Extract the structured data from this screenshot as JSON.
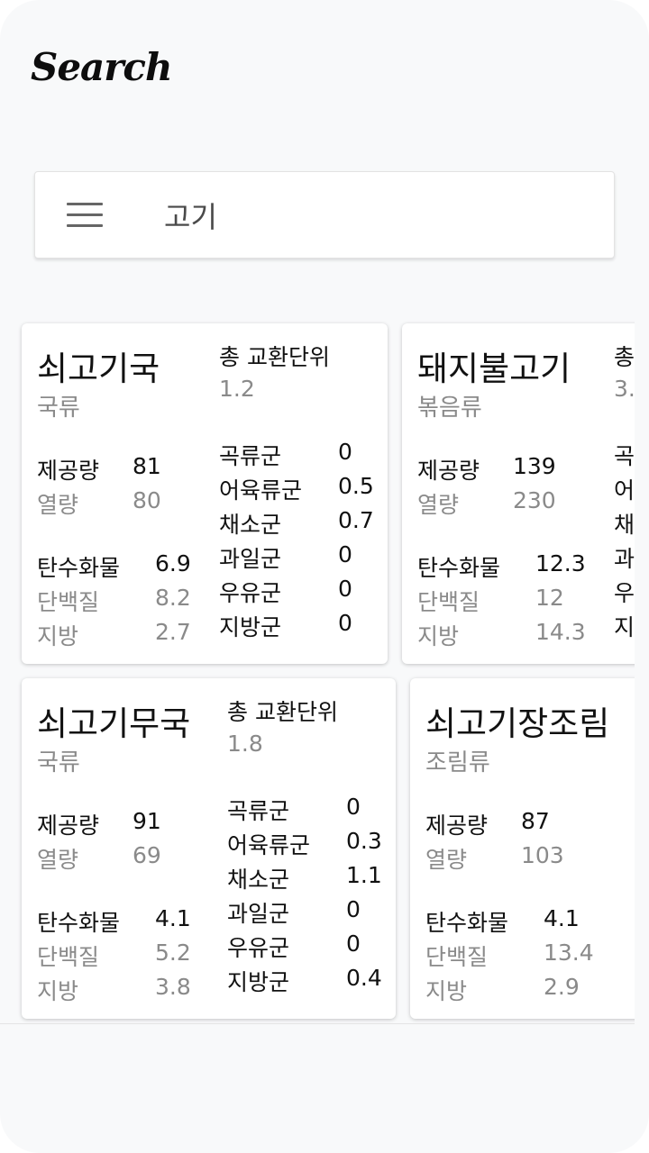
{
  "app": {
    "title": "Search"
  },
  "search": {
    "query": "고기"
  },
  "labels": {
    "total_exchange": "총 교환단위",
    "serving": "제공량",
    "calories": "열량",
    "carbs": "탄수화물",
    "protein": "단백질",
    "fat": "지방",
    "grain": "곡류군",
    "meat": "어육류군",
    "vegetable": "채소군",
    "fruit": "과일군",
    "milk": "우유군",
    "fat_group": "지방군"
  },
  "results": [
    {
      "name": "쇠고기국",
      "category": "국류",
      "total_exchange": "1.2",
      "serving": "81",
      "calories": "80",
      "carbs": "6.9",
      "protein": "8.2",
      "fat": "2.7",
      "grain": "0",
      "meat": "0.5",
      "vegetable": "0.7",
      "fruit": "0",
      "milk": "0",
      "fat_group": "0"
    },
    {
      "name": "돼지불고기",
      "category": "볶음류",
      "total_exchange": "3.",
      "serving": "139",
      "calories": "230",
      "carbs": "12.3",
      "protein": "12",
      "fat": "14.3"
    },
    {
      "name": "쇠고기무국",
      "category": "국류",
      "total_exchange": "1.8",
      "serving": "91",
      "calories": "69",
      "carbs": "4.1",
      "protein": "5.2",
      "fat": "3.8",
      "grain": "0",
      "meat": "0.3",
      "vegetable": "1.1",
      "fruit": "0",
      "milk": "0",
      "fat_group": "0.4"
    },
    {
      "name": "쇠고기장조림",
      "category": "조림류",
      "serving": "87",
      "calories": "103",
      "carbs": "4.1",
      "protein": "13.4",
      "fat": "2.9"
    }
  ]
}
